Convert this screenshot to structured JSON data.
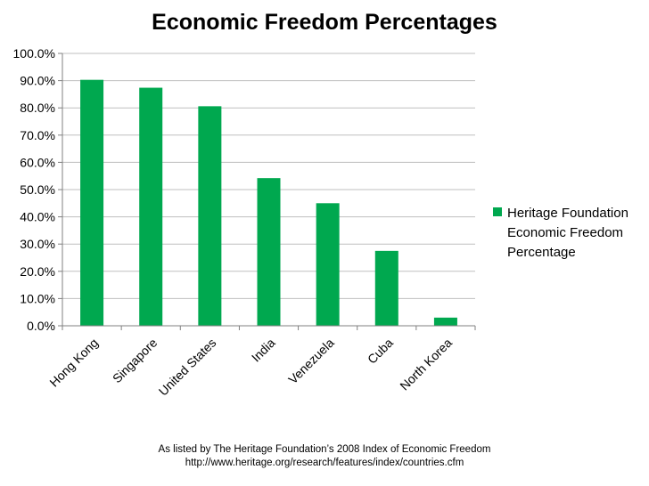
{
  "chart_data": {
    "type": "bar",
    "title": "Economic Freedom Percentages",
    "xlabel": "",
    "ylabel": "",
    "ylim": [
      0,
      100
    ],
    "ytick_step": 10,
    "ytick_format": "percent-1dp",
    "grid": true,
    "categories": [
      "Hong Kong",
      "Singapore",
      "United States",
      "India",
      "Venezuela",
      "Cuba",
      "North Korea"
    ],
    "series": [
      {
        "name": "Heritage Foundation Economic Freedom Percentage",
        "legend_lines": [
          "Heritage Foundation",
          "Economic Freedom",
          "Percentage"
        ],
        "color": "#00A84F",
        "values": [
          90.3,
          87.4,
          80.6,
          54.2,
          45.0,
          27.5,
          3.0
        ]
      }
    ],
    "legend_position": "right"
  },
  "footnote": {
    "line1": "As listed by The Heritage Foundation’s 2008 Index of Economic Freedom",
    "line2": "http://www.heritage.org/research/features/index/countries.cfm"
  }
}
